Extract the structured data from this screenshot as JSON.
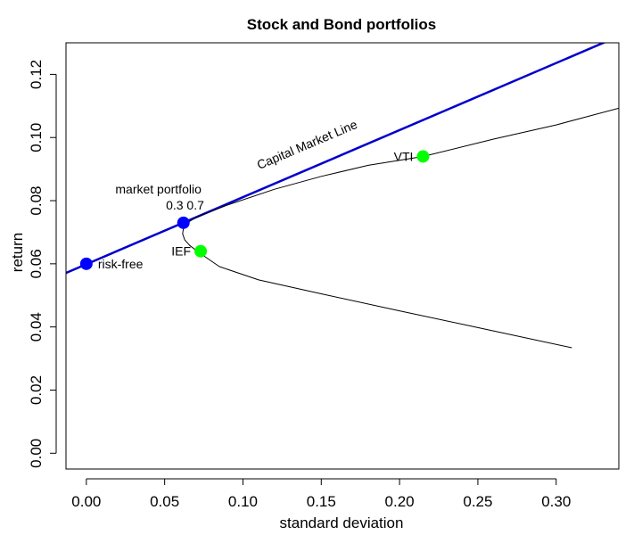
{
  "chart_data": {
    "type": "line",
    "title": "Stock and Bond portfolios",
    "xlabel": "standard deviation",
    "ylabel": "return",
    "xlim": [
      -0.013,
      0.34
    ],
    "ylim": [
      -0.005,
      0.13
    ],
    "x_ticks": [
      0.0,
      0.05,
      0.1,
      0.15,
      0.2,
      0.25,
      0.3
    ],
    "x_tick_labels": [
      "0.00",
      "0.05",
      "0.10",
      "0.15",
      "0.20",
      "0.25",
      "0.30"
    ],
    "y_ticks": [
      0.0,
      0.02,
      0.04,
      0.06,
      0.08,
      0.1,
      0.12
    ],
    "y_tick_labels": [
      "0.00",
      "0.02",
      "0.04",
      "0.06",
      "0.08",
      "0.10",
      "0.12"
    ],
    "grid": false,
    "lines": [
      {
        "name": "Capital Market Line",
        "color": "#0000cc",
        "width": 2.5,
        "points": [
          [
            -0.013,
            0.0571
          ],
          [
            0.34,
            0.1321
          ]
        ]
      },
      {
        "name": "",
        "color": "#000000",
        "width": 1,
        "points": [
          [
            0.31,
            0.0334
          ],
          [
            0.25,
            0.0398
          ],
          [
            0.2,
            0.0451
          ],
          [
            0.15,
            0.0505
          ],
          [
            0.11,
            0.0549
          ],
          [
            0.085,
            0.0591
          ],
          [
            0.075,
            0.0625
          ],
          [
            0.07,
            0.0643
          ],
          [
            0.066,
            0.0658
          ],
          [
            0.0628,
            0.0676
          ],
          [
            0.0615,
            0.0695
          ],
          [
            0.062,
            0.0712
          ],
          [
            0.064,
            0.0728
          ],
          [
            0.07,
            0.0747
          ],
          [
            0.09,
            0.0786
          ],
          [
            0.12,
            0.0836
          ],
          [
            0.15,
            0.0877
          ],
          [
            0.18,
            0.0912
          ],
          [
            0.215,
            0.094
          ],
          [
            0.26,
            0.0995
          ],
          [
            0.3,
            0.104
          ],
          [
            0.34,
            0.1093
          ]
        ]
      }
    ],
    "points": [
      {
        "label": "risk-free",
        "x": 0.0,
        "y": 0.06,
        "color": "#0000ff",
        "label_side": "right"
      },
      {
        "label": "",
        "x": 0.062,
        "y": 0.073,
        "color": "#0000ff",
        "label_side": "none"
      },
      {
        "label": "VTI",
        "x": 0.215,
        "y": 0.094,
        "color": "#00ff00",
        "label_side": "left"
      },
      {
        "label": "IEF",
        "x": 0.073,
        "y": 0.064,
        "color": "#00ff00",
        "label_side": "left"
      }
    ],
    "annotations": [
      {
        "text": "market portfolio",
        "x": 0.046,
        "y": 0.0822
      },
      {
        "text": "0.3 0.7",
        "x": 0.063,
        "y": 0.0772
      },
      {
        "text": "Capital Market Line",
        "x": 0.142,
        "y": 0.0965,
        "angle": -23
      }
    ]
  }
}
